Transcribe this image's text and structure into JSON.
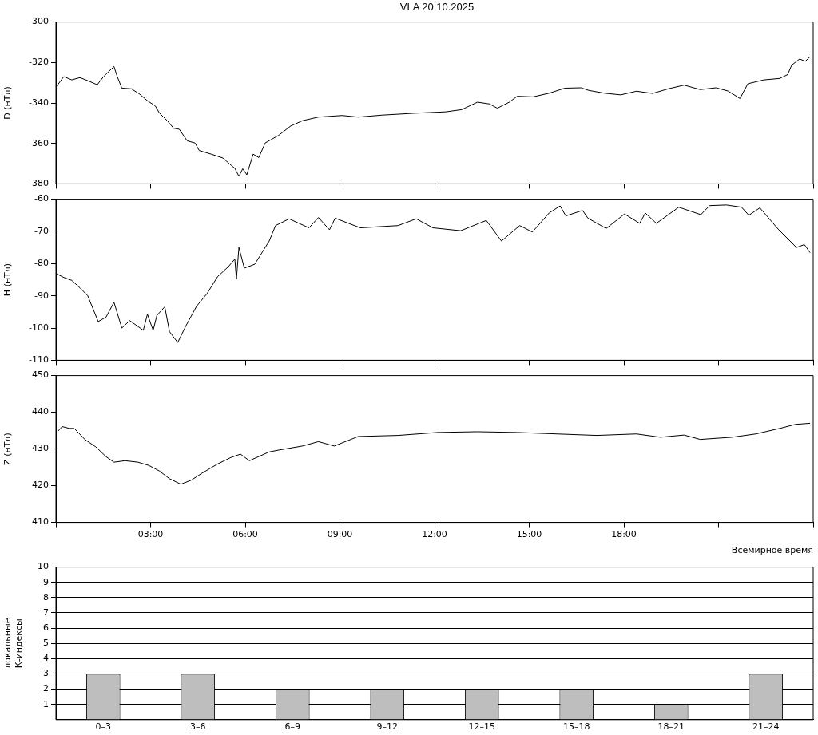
{
  "chart_data": [
    {
      "type": "line",
      "title": "VLA   20.10.2025",
      "ylabel": "D (нТл)",
      "color": "#000000",
      "xlim": [
        0,
        24
      ],
      "ylim": [
        -380,
        -300
      ],
      "yticks": [
        -380,
        -360,
        -340,
        -320,
        -300
      ],
      "xticks": [
        0,
        3,
        6,
        9,
        12,
        15,
        18,
        21,
        24
      ],
      "tick_labels": "y",
      "x": [
        0.03,
        0.25,
        0.5,
        0.76,
        1.01,
        1.31,
        1.51,
        1.84,
        1.94,
        2.09,
        2.39,
        2.65,
        2.9,
        3.15,
        3.28,
        3.53,
        3.73,
        3.91,
        4.16,
        4.41,
        4.54,
        4.92,
        5.29,
        5.55,
        5.67,
        5.8,
        5.92,
        6.05,
        6.25,
        6.43,
        6.63,
        7.06,
        7.44,
        7.81,
        8.32,
        9.07,
        9.58,
        10.34,
        11.34,
        12.35,
        12.86,
        13.36,
        13.74,
        13.99,
        14.37,
        14.62,
        15.12,
        15.63,
        16.13,
        16.64,
        16.89,
        17.39,
        17.9,
        18.4,
        18.91,
        19.41,
        19.91,
        20.42,
        20.92,
        21.3,
        21.68,
        21.93,
        22.44,
        22.94,
        23.19,
        23.32,
        23.57,
        23.75,
        23.9
      ],
      "values": [
        -331.6,
        -327,
        -328.6,
        -327.5,
        -329,
        -331,
        -327,
        -322,
        -326.8,
        -332.7,
        -333,
        -335.6,
        -338.9,
        -341.5,
        -345,
        -348.8,
        -352.5,
        -353,
        -358.7,
        -359.8,
        -363.5,
        -365.3,
        -367.2,
        -370.8,
        -372.3,
        -376.3,
        -372.5,
        -375.5,
        -365.3,
        -367,
        -359.8,
        -356,
        -351.4,
        -348.8,
        -347,
        -346.2,
        -347,
        -346,
        -345.1,
        -344.4,
        -343.3,
        -339.6,
        -340.5,
        -342.6,
        -339.6,
        -336.7,
        -337,
        -335.2,
        -332.7,
        -332.5,
        -333.8,
        -335.2,
        -336,
        -334.2,
        -335.3,
        -333,
        -331.2,
        -333.4,
        -332.5,
        -334.1,
        -337.8,
        -330.5,
        -328.6,
        -327.9,
        -326,
        -321.3,
        -318.3,
        -319.4,
        -317.2
      ]
    },
    {
      "type": "line",
      "ylabel": "H (нТл)",
      "color": "#000000",
      "xlim": [
        0,
        24
      ],
      "ylim": [
        -110,
        -60
      ],
      "yticks": [
        -110,
        -100,
        -90,
        -80,
        -70,
        -60
      ],
      "xticks": [
        0,
        3,
        6,
        9,
        12,
        15,
        18,
        21,
        24
      ],
      "tick_labels": "y",
      "x": [
        0.03,
        0.25,
        0.5,
        0.76,
        1.01,
        1.34,
        1.59,
        1.84,
        2.09,
        2.34,
        2.77,
        2.9,
        3.08,
        3.2,
        3.45,
        3.6,
        3.86,
        4.11,
        4.46,
        4.79,
        5.12,
        5.47,
        5.67,
        5.72,
        5.8,
        5.97,
        6.3,
        6.76,
        6.96,
        7.39,
        8.02,
        8.32,
        8.67,
        8.85,
        9.65,
        10.84,
        11.42,
        11.95,
        12.83,
        13.64,
        14.12,
        14.7,
        15.1,
        15.63,
        15.98,
        16.16,
        16.69,
        16.86,
        17.44,
        18.02,
        18.5,
        18.68,
        19.03,
        19.74,
        20.44,
        20.72,
        21.25,
        21.73,
        21.96,
        22.31,
        22.89,
        23.47,
        23.72,
        23.9
      ],
      "values": [
        -83.2,
        -84.3,
        -85.2,
        -87.5,
        -90,
        -98,
        -96.6,
        -92,
        -100,
        -97.7,
        -100.7,
        -95.7,
        -100.7,
        -96.1,
        -93.4,
        -101.1,
        -104.5,
        -99.5,
        -93.2,
        -89.3,
        -84.1,
        -80.9,
        -78.6,
        -84.8,
        -75,
        -81.4,
        -80.2,
        -73,
        -68.2,
        -66.1,
        -68.9,
        -65.7,
        -69.5,
        -65.9,
        -68.9,
        -68.2,
        -66.1,
        -68.9,
        -69.8,
        -66.6,
        -73,
        -68.2,
        -70.2,
        -64.3,
        -62.1,
        -65.2,
        -63.5,
        -65.9,
        -69.1,
        -64.6,
        -67.5,
        -64.3,
        -67.5,
        -62.5,
        -64.8,
        -62,
        -61.8,
        -62.5,
        -65,
        -62.7,
        -69.3,
        -75,
        -74.1,
        -76.6
      ]
    },
    {
      "type": "line",
      "ylabel": "Z (нТл)",
      "xlabel": "Всемирное время",
      "color": "#000000",
      "xlim": [
        0,
        24
      ],
      "ylim": [
        410,
        450
      ],
      "yticks": [
        410,
        420,
        430,
        440,
        450
      ],
      "xticks": [
        {
          "value": 0,
          "label": null
        },
        {
          "value": 3,
          "label": "03:00"
        },
        {
          "value": 6,
          "label": "06:00"
        },
        {
          "value": 9,
          "label": "09:00"
        },
        {
          "value": 12,
          "label": "12:00"
        },
        {
          "value": 15,
          "label": "15:00"
        },
        {
          "value": 18,
          "label": "18:00"
        },
        {
          "value": 21,
          "label": null
        },
        {
          "value": 24,
          "label": null
        }
      ],
      "x": [
        0.05,
        0.2,
        0.43,
        0.58,
        0.93,
        1.26,
        1.59,
        1.84,
        2.19,
        2.6,
        2.95,
        3.28,
        3.6,
        3.96,
        4.29,
        4.61,
        5.12,
        5.55,
        5.85,
        6.13,
        6.76,
        7.06,
        7.81,
        8.32,
        8.82,
        9.58,
        10.84,
        12.1,
        13.36,
        14.62,
        15.88,
        17.14,
        18.4,
        19.16,
        19.91,
        20.42,
        21.43,
        22.18,
        22.94,
        23.44,
        23.9
      ],
      "values": [
        434.7,
        436.1,
        435.6,
        435.6,
        432.5,
        430.6,
        427.9,
        426.4,
        426.8,
        426.4,
        425.5,
        424,
        421.9,
        420.4,
        421.5,
        423.3,
        425.9,
        427.7,
        428.6,
        426.8,
        429.2,
        429.7,
        430.8,
        432,
        430.8,
        433.4,
        433.7,
        434.5,
        434.7,
        434.5,
        434.1,
        433.7,
        434.1,
        433.2,
        433.8,
        432.6,
        433.2,
        434.1,
        435.6,
        436.7,
        437
      ]
    },
    {
      "type": "bar",
      "ylabel": "локальные\nК-индексы",
      "color": "#bebebe",
      "categories": [
        "0–3",
        "3–6",
        "6–9",
        "9–12",
        "12–15",
        "15–18",
        "18–21",
        "21–24"
      ],
      "values": [
        3,
        3,
        2,
        2,
        2,
        2,
        1,
        3
      ],
      "ylim": [
        0,
        10
      ],
      "yticks": [
        1,
        2,
        3,
        4,
        5,
        6,
        7,
        8,
        9,
        10
      ],
      "grid": "y"
    }
  ]
}
